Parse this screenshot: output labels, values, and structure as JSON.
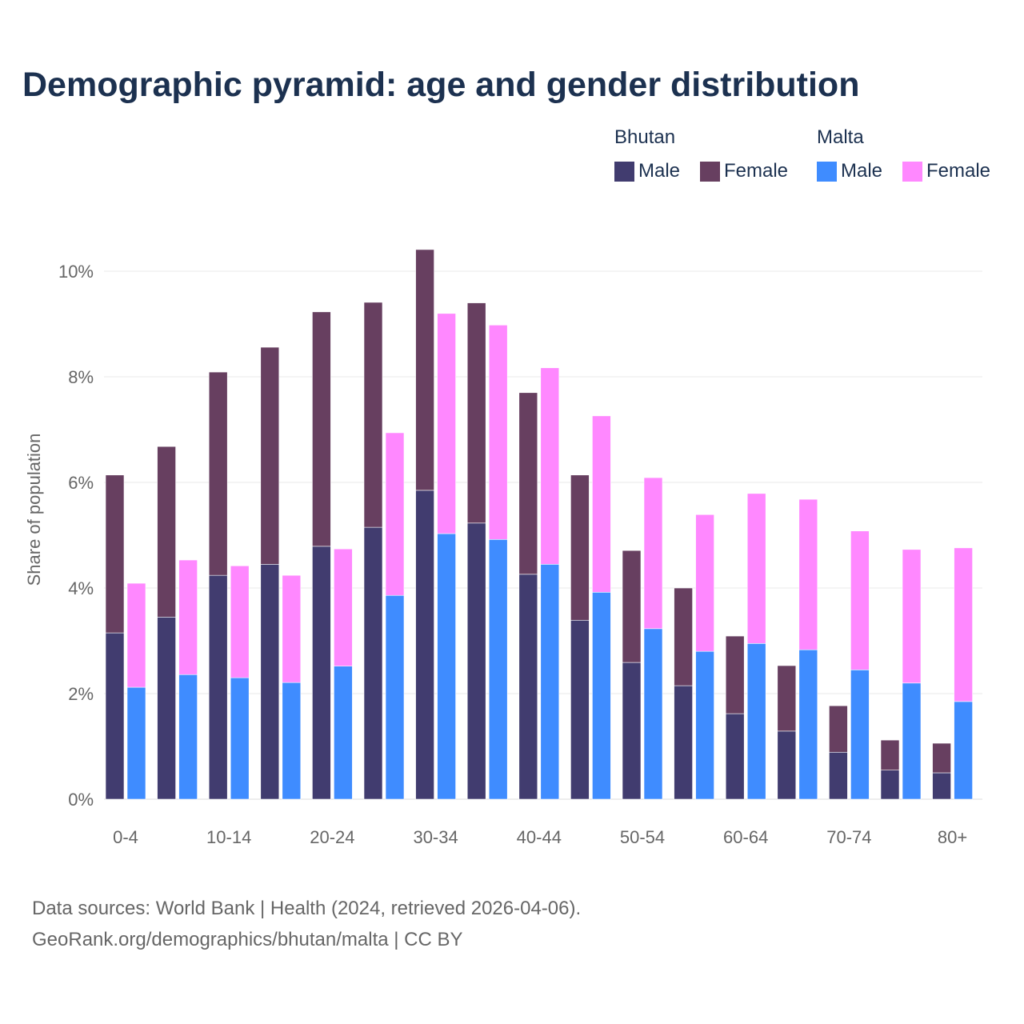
{
  "chart_data": {
    "type": "bar",
    "stacked": true,
    "title": "Demographic pyramid: age and gender distribution",
    "xlabel": "",
    "ylabel": "Share of population",
    "ylim": [
      0,
      10.5
    ],
    "yticks": [
      0,
      2,
      4,
      6,
      8,
      10
    ],
    "ytick_labels": [
      "0%",
      "2%",
      "4%",
      "6%",
      "8%",
      "10%"
    ],
    "grid": true,
    "legend_position": "top-right",
    "categories": [
      "0-4",
      "5-9",
      "10-14",
      "15-19",
      "20-24",
      "25-29",
      "30-34",
      "35-39",
      "40-44",
      "45-49",
      "50-54",
      "55-59",
      "60-64",
      "65-69",
      "70-74",
      "75-79",
      "80+"
    ],
    "xtick_labels_shown": [
      "0-4",
      "10-14",
      "20-24",
      "30-34",
      "40-44",
      "50-54",
      "60-64",
      "70-74",
      "80+"
    ],
    "groups": [
      {
        "name": "Bhutan",
        "series": [
          {
            "name": "Male",
            "color": "#413c6f",
            "values": [
              3.15,
              3.45,
              4.24,
              4.45,
              4.79,
              5.15,
              5.85,
              5.23,
              4.26,
              3.39,
              2.59,
              2.15,
              1.62,
              1.29,
              0.89,
              0.55,
              0.5
            ]
          },
          {
            "name": "Female",
            "color": "#673f60",
            "values": [
              2.99,
              3.23,
              3.85,
              4.11,
              4.44,
              4.26,
              4.56,
              4.17,
              3.44,
              2.75,
              2.12,
              1.85,
              1.47,
              1.24,
              0.88,
              0.57,
              0.56
            ]
          }
        ]
      },
      {
        "name": "Malta",
        "series": [
          {
            "name": "Male",
            "color": "#3f8cff",
            "values": [
              2.12,
              2.36,
              2.3,
              2.21,
              2.52,
              3.86,
              5.03,
              4.92,
              4.45,
              3.92,
              3.23,
              2.8,
              2.95,
              2.83,
              2.45,
              2.2,
              1.85
            ]
          },
          {
            "name": "Female",
            "color": "#ff88ff",
            "values": [
              1.97,
              2.17,
              2.12,
              2.03,
              2.22,
              3.08,
              4.17,
              4.06,
              3.72,
              3.34,
              2.86,
              2.59,
              2.84,
              2.85,
              2.63,
              2.53,
              2.91
            ]
          }
        ]
      }
    ]
  },
  "footer": {
    "line1": "Data sources: World Bank | Health (2024, retrieved 2026-04-06).",
    "line2": "GeoRank.org/demographics/bhutan/malta | CC BY"
  }
}
